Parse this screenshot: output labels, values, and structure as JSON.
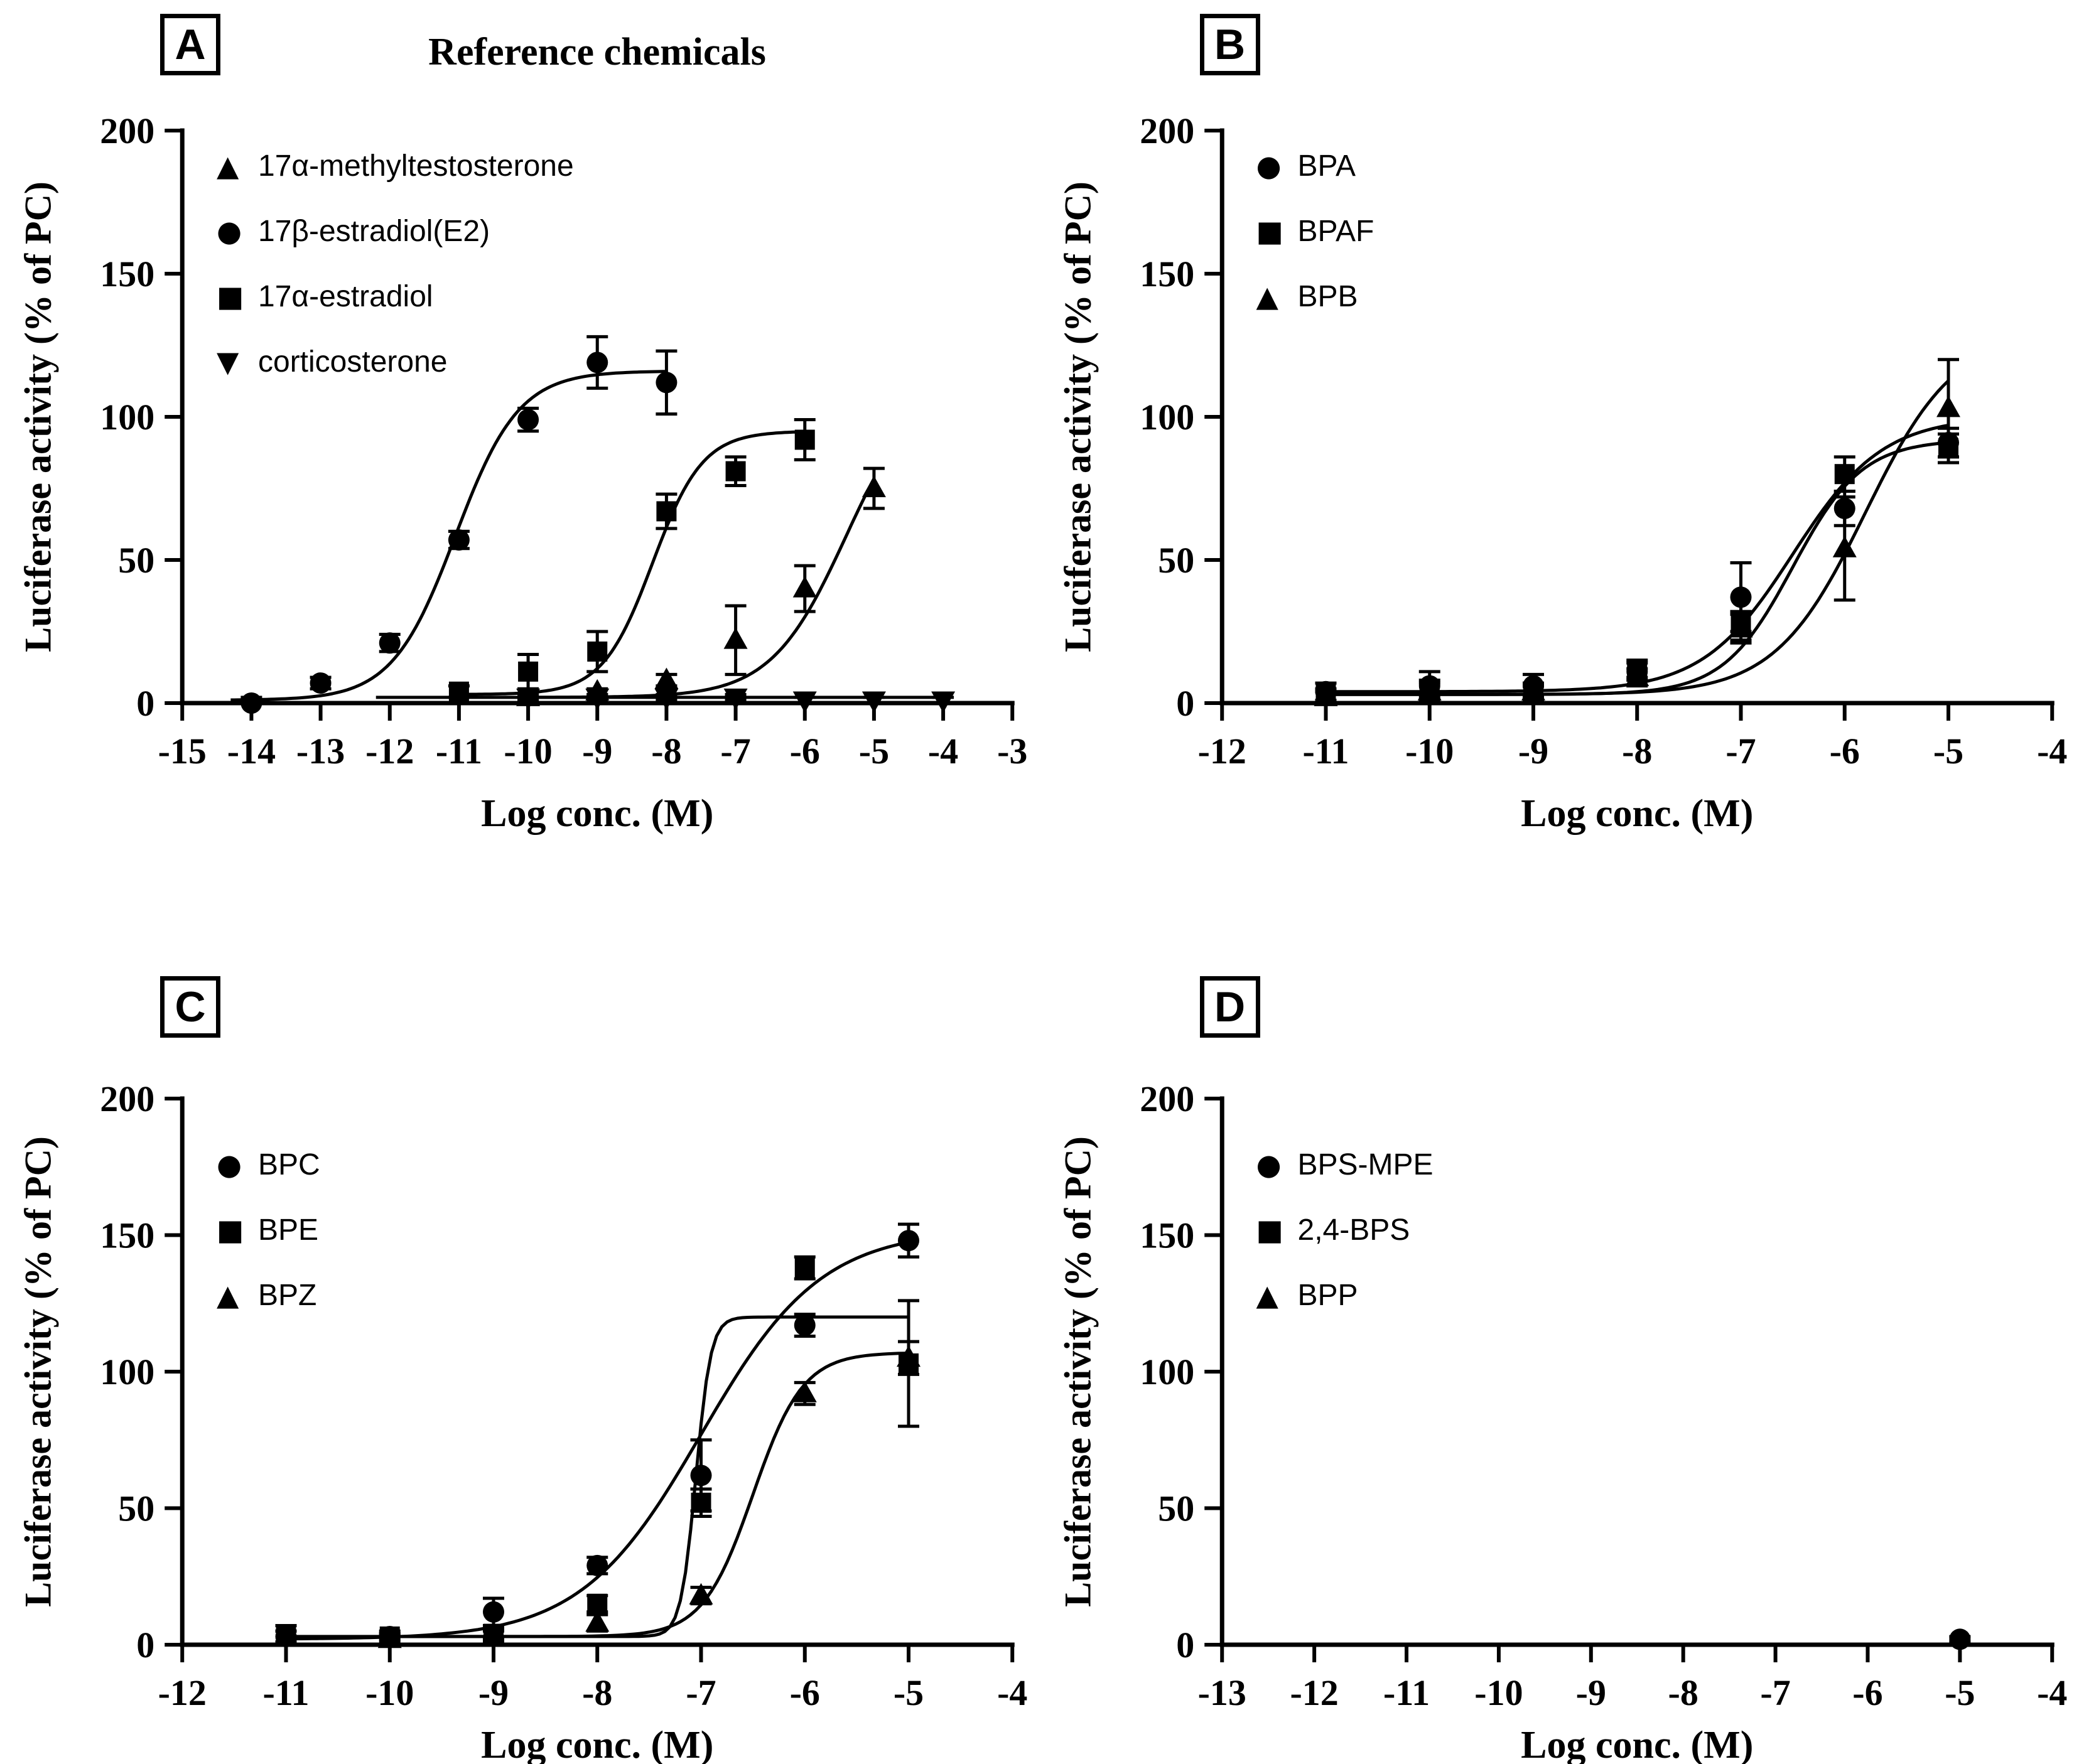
{
  "figure": {
    "background": "#ffffff",
    "ink": "#000000"
  },
  "chart_data": [
    {
      "type": "scatter",
      "panel_label": "A",
      "title": "Reference chemicals",
      "xlabel": "Log conc. (M)",
      "ylabel": "Luciferase activity (% of PC)",
      "xlim": [
        -15,
        -3
      ],
      "xticks": [
        -15,
        -14,
        -13,
        -12,
        -11,
        -10,
        -9,
        -8,
        -7,
        -6,
        -5,
        -4,
        -3
      ],
      "ylim": [
        0,
        200
      ],
      "yticks": [
        0,
        50,
        100,
        150,
        200
      ],
      "legend_position": "top-left-inside",
      "grid": false,
      "series": [
        {
          "name": "17α-methyltestosterone",
          "marker": "triangle-up",
          "points": [
            [
              -10,
              2,
              1
            ],
            [
              -9,
              4,
              1
            ],
            [
              -8,
              8,
              2
            ],
            [
              -7,
              22,
              12
            ],
            [
              -6,
              40,
              8
            ],
            [
              -5,
              75,
              7
            ]
          ],
          "curve": {
            "bottom": 2,
            "top": 115,
            "logec50": -5.4,
            "hill": 0.8,
            "from": -10,
            "to": -5
          }
        },
        {
          "name": "17β-estradiol(E2)",
          "marker": "circle",
          "points": [
            [
              -14,
              0,
              2
            ],
            [
              -13,
              7,
              2
            ],
            [
              -12,
              21,
              3
            ],
            [
              -11,
              57,
              3
            ],
            [
              -10,
              99,
              4
            ],
            [
              -9,
              119,
              9
            ],
            [
              -8,
              112,
              11
            ]
          ],
          "curve": {
            "bottom": 1,
            "top": 116,
            "logec50": -11.05,
            "hill": 0.95,
            "from": -14.3,
            "to": -8
          }
        },
        {
          "name": "17α-estradiol",
          "marker": "square",
          "points": [
            [
              -11,
              4,
              2
            ],
            [
              -10,
              11,
              6
            ],
            [
              -9,
              18,
              7
            ],
            [
              -8,
              67,
              6
            ],
            [
              -7,
              81,
              5
            ],
            [
              -6,
              92,
              7
            ]
          ],
          "curve": {
            "bottom": 3,
            "top": 95,
            "logec50": -8.2,
            "hill": 1.2,
            "from": -11,
            "to": -6
          }
        },
        {
          "name": "corticosterone",
          "marker": "triangle-down",
          "points": [
            [
              -10,
              2,
              1
            ],
            [
              -9,
              2,
              1
            ],
            [
              -8,
              2,
              1
            ],
            [
              -7,
              2,
              1
            ],
            [
              -6,
              1,
              1
            ],
            [
              -5,
              1,
              1
            ],
            [
              -4,
              1,
              1
            ]
          ],
          "curve": {
            "bottom": 2,
            "top": 2,
            "logec50": -8,
            "hill": 1,
            "from": -12.2,
            "to": -4
          }
        }
      ]
    },
    {
      "type": "scatter",
      "panel_label": "B",
      "title": "",
      "xlabel": "Log conc. (M)",
      "ylabel": "Luciferase activity (% of PC)",
      "xlim": [
        -12,
        -4
      ],
      "xticks": [
        -12,
        -11,
        -10,
        -9,
        -8,
        -7,
        -6,
        -5,
        -4
      ],
      "ylim": [
        0,
        200
      ],
      "yticks": [
        0,
        50,
        100,
        150,
        200
      ],
      "legend_position": "top-left-inside",
      "grid": false,
      "series": [
        {
          "name": "BPA",
          "marker": "circle",
          "points": [
            [
              -11,
              4,
              3
            ],
            [
              -10,
              6,
              5
            ],
            [
              -9,
              6,
              4
            ],
            [
              -8,
              11,
              3
            ],
            [
              -7,
              37,
              12
            ],
            [
              -6,
              68,
              6
            ],
            [
              -5,
              91,
              5
            ]
          ],
          "curve": {
            "bottom": 4,
            "top": 100,
            "logec50": -6.5,
            "hill": 1,
            "from": -11,
            "to": -5
          }
        },
        {
          "name": "BPAF",
          "marker": "square",
          "points": [
            [
              -11,
              3,
              2
            ],
            [
              -10,
              5,
              3
            ],
            [
              -9,
              4,
              2
            ],
            [
              -8,
              12,
              3
            ],
            [
              -7,
              27,
              5
            ],
            [
              -6,
              80,
              6
            ],
            [
              -5,
              89,
              5
            ]
          ],
          "curve": {
            "bottom": 3,
            "top": 92,
            "logec50": -6.5,
            "hill": 1.3,
            "from": -11,
            "to": -5
          }
        },
        {
          "name": "BPB",
          "marker": "triangle-up",
          "points": [
            [
              -11,
              2,
              2
            ],
            [
              -10,
              4,
              3
            ],
            [
              -9,
              4,
              3
            ],
            [
              -8,
              9,
              3
            ],
            [
              -7,
              26,
              5
            ],
            [
              -6,
              54,
              18
            ],
            [
              -5,
              103,
              17
            ]
          ],
          "curve": {
            "bottom": 3,
            "top": 130,
            "logec50": -5.8,
            "hill": 1,
            "from": -11,
            "to": -5
          }
        }
      ]
    },
    {
      "type": "scatter",
      "panel_label": "C",
      "title": "",
      "xlabel": "Log conc. (M)",
      "ylabel": "Luciferase activity (% of PC)",
      "xlim": [
        -12,
        -4
      ],
      "xticks": [
        -12,
        -11,
        -10,
        -9,
        -8,
        -7,
        -6,
        -5,
        -4
      ],
      "ylim": [
        0,
        200
      ],
      "yticks": [
        0,
        50,
        100,
        150,
        200
      ],
      "legend_position": "top-left-inside",
      "grid": false,
      "series": [
        {
          "name": "BPC",
          "marker": "circle",
          "points": [
            [
              -11,
              3,
              2
            ],
            [
              -10,
              3,
              2
            ],
            [
              -9,
              12,
              5
            ],
            [
              -8,
              29,
              3
            ],
            [
              -7,
              62,
              13
            ],
            [
              -6,
              117,
              4
            ],
            [
              -5,
              148,
              6
            ]
          ],
          "curve": {
            "bottom": 2,
            "top": 152,
            "logec50": -7.0,
            "hill": 0.75,
            "from": -11,
            "to": -5
          }
        },
        {
          "name": "BPE",
          "marker": "square",
          "points": [
            [
              -11,
              3,
              2
            ],
            [
              -10,
              3,
              1
            ],
            [
              -9,
              4,
              2
            ],
            [
              -8,
              15,
              3
            ],
            [
              -7,
              52,
              5
            ],
            [
              -6,
              138,
              4
            ],
            [
              -5,
              103,
              23
            ]
          ],
          "curve": {
            "bottom": 3,
            "top": 120,
            "logec50": -7.05,
            "hill": 6,
            "from": -11,
            "to": -5
          }
        },
        {
          "name": "BPZ",
          "marker": "triangle-up",
          "points": [
            [
              -11,
              3,
              4
            ],
            [
              -10,
              2,
              2
            ],
            [
              -9,
              3,
              2
            ],
            [
              -8,
              8,
              3
            ],
            [
              -7,
              18,
              3
            ],
            [
              -6,
              92,
              4
            ],
            [
              -5,
              105,
              6
            ]
          ],
          "curve": {
            "bottom": 3,
            "top": 107,
            "logec50": -6.5,
            "hill": 1.8,
            "from": -11,
            "to": -5
          }
        }
      ]
    },
    {
      "type": "scatter",
      "panel_label": "D",
      "title": "",
      "xlabel": "Log conc. (M)",
      "ylabel": "Luciferase activity (% of PC)",
      "xlim": [
        -13,
        -4
      ],
      "xticks": [
        -13,
        -12,
        -11,
        -10,
        -9,
        -8,
        -7,
        -6,
        -5,
        -4
      ],
      "ylim": [
        0,
        200
      ],
      "yticks": [
        0,
        50,
        100,
        150,
        200
      ],
      "legend_position": "top-left-inside",
      "grid": false,
      "series": [
        {
          "name": "BPS-MPE",
          "marker": "circle",
          "points": [
            [
              -5,
              2,
              1
            ]
          ],
          "curve": null
        },
        {
          "name": "2,4-BPS",
          "marker": "square",
          "points": [],
          "curve": null
        },
        {
          "name": "BPP",
          "marker": "triangle-up",
          "points": [],
          "curve": null
        }
      ]
    }
  ]
}
